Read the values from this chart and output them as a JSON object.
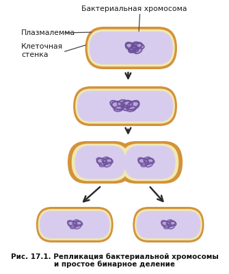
{
  "bg_color": "#ffffff",
  "cell_outer_color": "#D4923A",
  "cell_outer_light": "#E8B86D",
  "cell_inner_ring": "#F0E8B0",
  "cell_cytoplasm": "#D8CCEE",
  "chromosome_color": "#6B4F9A",
  "chromosome_fill": "#B8A0D8",
  "arrow_color": "#2a2a2a",
  "label_color": "#1a1a1a",
  "annotation_line_color": "#444444",
  "labels": {
    "bacterialChromosome": "Бактериальная хромосома",
    "plazmaMembrane": "Плазмалемма",
    "cellWall": "Клеточная\nстенка"
  },
  "caption_line1": "Рис. 17.1. Репликация бактериальной хромосомы",
  "caption_line2": "и простое бинарное деление"
}
